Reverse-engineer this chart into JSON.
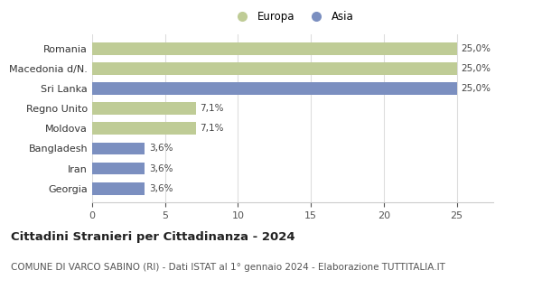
{
  "categories": [
    "Georgia",
    "Iran",
    "Bangladesh",
    "Moldova",
    "Regno Unito",
    "Sri Lanka",
    "Macedonia d/N.",
    "Romania"
  ],
  "values": [
    3.6,
    3.6,
    3.6,
    7.1,
    7.1,
    25.0,
    25.0,
    25.0
  ],
  "colors": [
    "#7b8fc0",
    "#7b8fc0",
    "#7b8fc0",
    "#bfcc96",
    "#bfcc96",
    "#7b8fc0",
    "#bfcc96",
    "#bfcc96"
  ],
  "labels": [
    "3,6%",
    "3,6%",
    "3,6%",
    "7,1%",
    "7,1%",
    "25,0%",
    "25,0%",
    "25,0%"
  ],
  "europa_color": "#bfcc96",
  "asia_color": "#7b8fc0",
  "title": "Cittadini Stranieri per Cittadinanza - 2024",
  "subtitle": "COMUNE DI VARCO SABINO (RI) - Dati ISTAT al 1° gennaio 2024 - Elaborazione TUTTITALIA.IT",
  "xlabel_ticks": [
    0,
    5,
    10,
    15,
    20,
    25
  ],
  "xlim": [
    0,
    27.5
  ],
  "title_fontsize": 9.5,
  "subtitle_fontsize": 7.5,
  "bar_label_fontsize": 7.5,
  "tick_fontsize": 8,
  "legend_fontsize": 8.5
}
